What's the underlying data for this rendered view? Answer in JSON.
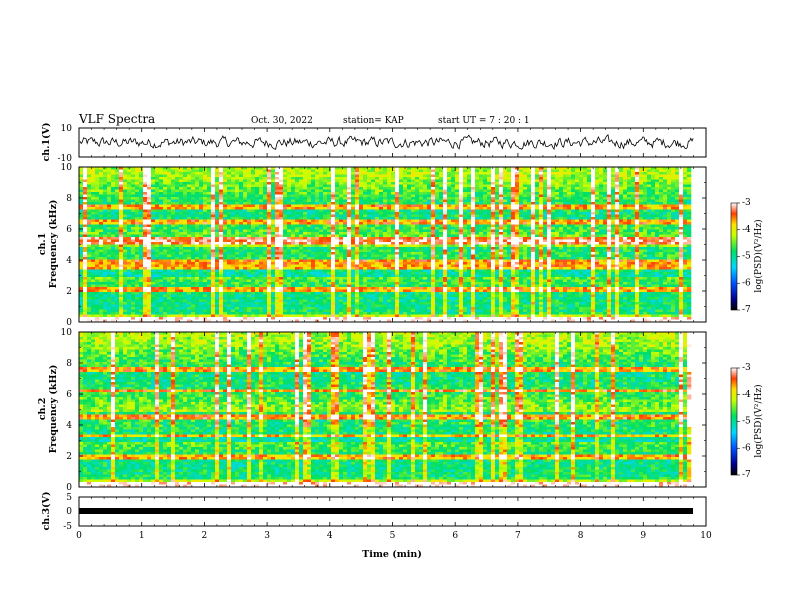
{
  "header": {
    "title": "VLF Spectra",
    "date": "Oct. 30, 2022",
    "station": "station= KAP",
    "start_ut": "start  UT  =   7 : 20 : 1"
  },
  "chart_data": [
    {
      "type": "line",
      "ylabel": "ch.1(V)",
      "ylim": [
        -10,
        10
      ],
      "yticks": [
        "10",
        "-10"
      ],
      "xlim": [
        0,
        10
      ],
      "series": [
        {
          "color": "#000000",
          "description": "noisy waveform around 0 V, amplitude about ±5 V"
        }
      ]
    },
    {
      "type": "heatmap",
      "ylabel": "ch.1",
      "ylabel2": "Frequency (kHz)",
      "ylim": [
        0,
        10
      ],
      "yticks": [
        "0",
        "2",
        "4",
        "6",
        "8",
        "10"
      ],
      "xlim": [
        0,
        9.8
      ],
      "colorbar": {
        "label": "log(PSD)(V²/Hz)",
        "range": [
          -7,
          -3
        ],
        "ticks": [
          "-3",
          "-4",
          "-5",
          "-6",
          "-7"
        ]
      },
      "bands_khz": [
        0.3,
        2.2,
        3.6,
        4.0,
        5.2,
        5.5,
        6.5,
        7.5
      ]
    },
    {
      "type": "heatmap",
      "ylabel": "ch.2",
      "ylabel2": "Frequency (kHz)",
      "ylim": [
        0,
        10
      ],
      "yticks": [
        "0",
        "2",
        "4",
        "6",
        "8",
        "10"
      ],
      "xlim": [
        0,
        9.8
      ],
      "colorbar": {
        "label": "log(PSD)(V²/Hz)",
        "range": [
          -7,
          -3
        ],
        "ticks": [
          "-3",
          "-4",
          "-5",
          "-6",
          "-7"
        ]
      },
      "bands_khz": [
        0.3,
        2.0,
        3.4,
        4.6,
        6.3,
        7.7
      ]
    },
    {
      "type": "line",
      "ylabel": "ch.3(V)",
      "ylim": [
        -5,
        5
      ],
      "yticks": [
        "5",
        "0",
        "-5"
      ],
      "xlim": [
        0,
        10
      ],
      "series": [
        {
          "color": "#000000",
          "description": "thick constant band near -0.5 V"
        }
      ]
    }
  ],
  "xaxis": {
    "label": "Time (min)",
    "ticks": [
      "0",
      "1",
      "2",
      "3",
      "4",
      "5",
      "6",
      "7",
      "8",
      "9",
      "10"
    ],
    "range": [
      0,
      10
    ]
  },
  "colors": {
    "axis": "#000000",
    "background": "#ffffff"
  }
}
